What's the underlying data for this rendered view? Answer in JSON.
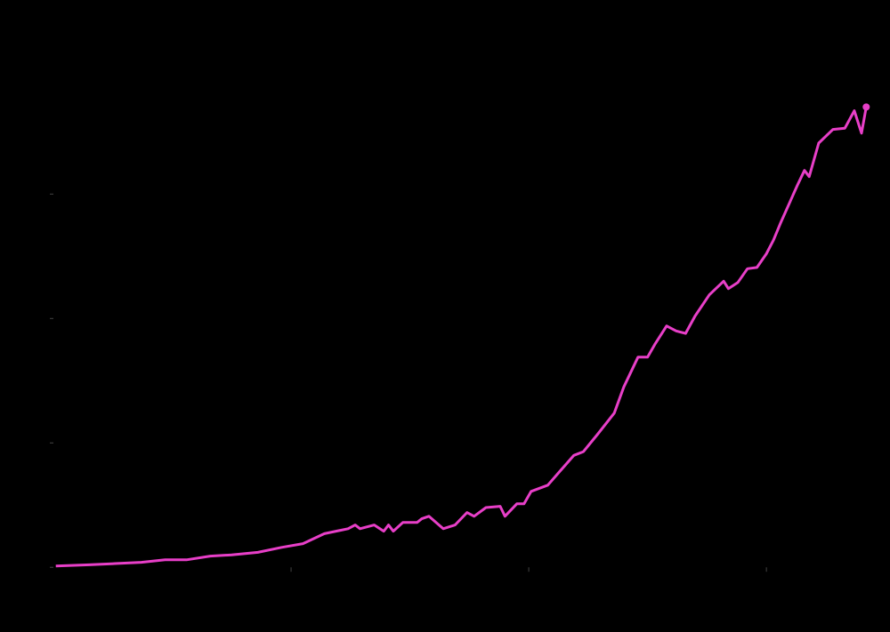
{
  "chart_data": {
    "type": "line",
    "title": "",
    "xlabel": "",
    "ylabel": "",
    "background": "#000000",
    "line_color": "#e83fc8",
    "tick_color": "#444444",
    "grid": false,
    "legend": "none",
    "end_marker": true,
    "xlim": [
      0,
      3.52
    ],
    "ylim": [
      -0.52,
      4.56
    ],
    "x_ticks": [
      1,
      2,
      3
    ],
    "y_ticks": [
      0,
      1,
      2,
      3
    ],
    "series": [
      {
        "x": [
          0.01,
          0.15,
          0.26,
          0.37,
          0.47,
          0.56,
          0.66,
          0.75,
          0.86,
          0.96,
          1.05,
          1.14,
          1.24,
          1.27,
          1.29,
          1.35,
          1.39,
          1.41,
          1.43,
          1.47,
          1.53,
          1.55,
          1.58,
          1.64,
          1.69,
          1.74,
          1.77,
          1.82,
          1.88,
          1.9,
          1.95,
          1.98,
          2.01,
          2.08,
          2.13,
          2.19,
          2.23,
          2.29,
          2.36,
          2.4,
          2.46,
          2.5,
          2.53,
          2.58,
          2.62,
          2.66,
          2.7,
          2.76,
          2.82,
          2.84,
          2.88,
          2.92,
          2.96,
          3.0,
          3.03,
          3.06,
          3.13,
          3.16,
          3.18,
          3.22,
          3.28,
          3.33,
          3.37,
          3.4,
          3.42
        ],
        "y": [
          0.01,
          0.02,
          0.03,
          0.04,
          0.06,
          0.06,
          0.09,
          0.1,
          0.12,
          0.16,
          0.19,
          0.27,
          0.31,
          0.34,
          0.31,
          0.34,
          0.29,
          0.34,
          0.29,
          0.36,
          0.36,
          0.39,
          0.41,
          0.31,
          0.34,
          0.44,
          0.41,
          0.48,
          0.49,
          0.41,
          0.51,
          0.51,
          0.61,
          0.66,
          0.77,
          0.9,
          0.93,
          1.07,
          1.24,
          1.45,
          1.69,
          1.69,
          1.79,
          1.94,
          1.9,
          1.88,
          2.02,
          2.19,
          2.3,
          2.24,
          2.29,
          2.4,
          2.41,
          2.52,
          2.63,
          2.77,
          3.07,
          3.19,
          3.14,
          3.41,
          3.52,
          3.53,
          3.67,
          3.49,
          3.7
        ]
      }
    ]
  }
}
